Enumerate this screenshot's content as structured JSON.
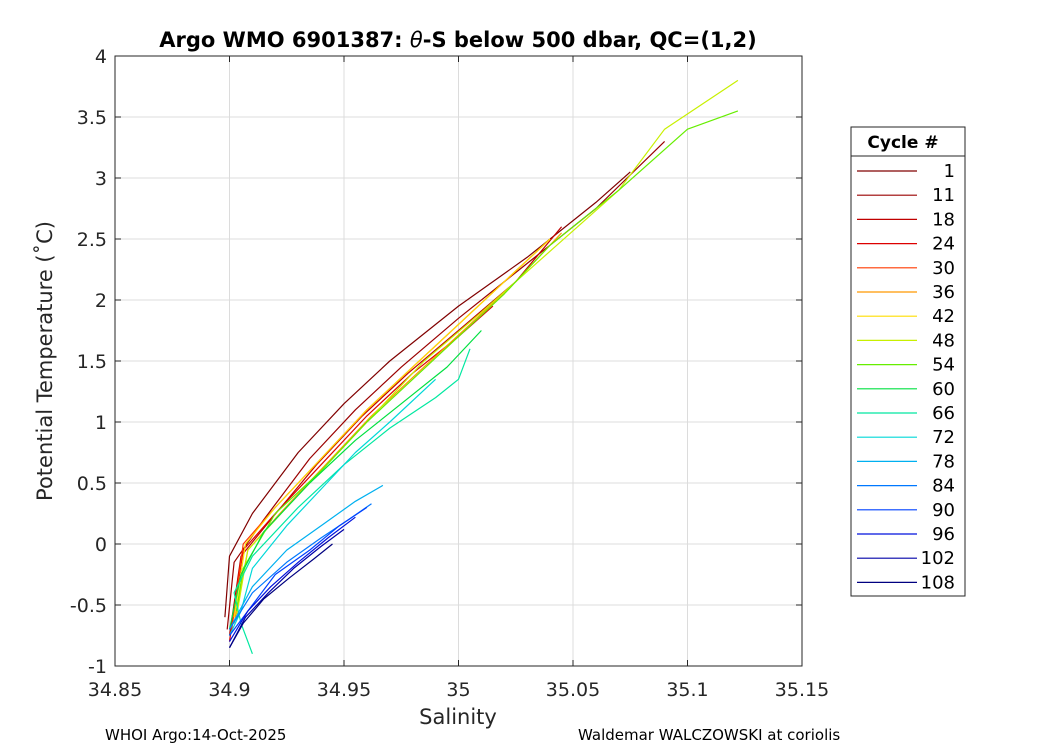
{
  "chart_data": {
    "type": "line",
    "title_prefix": "Argo WMO 6901387: ",
    "title_theta": "θ",
    "title_suffix": "-S below 500 dbar,  QC=(1,2)",
    "xlabel": "Salinity",
    "ylabel": "Potential Temperature (˚C)",
    "xlim": [
      34.85,
      35.15
    ],
    "ylim": [
      -1,
      4
    ],
    "xticks": [
      34.85,
      34.9,
      34.95,
      35,
      35.05,
      35.1,
      35.15
    ],
    "xtick_labels": [
      "34.85",
      "34.9",
      "34.95",
      "35",
      "35.05",
      "35.1",
      "35.15"
    ],
    "yticks": [
      -1,
      -0.5,
      0,
      0.5,
      1,
      1.5,
      2,
      2.5,
      3,
      3.5,
      4
    ],
    "ytick_labels": [
      "-1",
      "-0.5",
      "0",
      "0.5",
      "1",
      "1.5",
      "2",
      "2.5",
      "3",
      "3.5",
      "4"
    ],
    "grid": true,
    "legend_position": "right",
    "legend_title": "Cycle #",
    "series": [
      {
        "name": "1",
        "color": "#800000",
        "x": [
          34.898,
          34.9,
          34.91,
          34.93,
          34.95,
          34.97,
          35.0,
          35.03,
          35.06,
          35.075
        ],
        "y": [
          -0.6,
          -0.1,
          0.25,
          0.75,
          1.15,
          1.5,
          1.95,
          2.35,
          2.8,
          3.05
        ]
      },
      {
        "name": "11",
        "color": "#9a0000",
        "x": [
          34.899,
          34.902,
          34.915,
          34.935,
          34.955,
          34.975,
          35.0,
          35.03,
          35.06,
          35.09
        ],
        "y": [
          -0.7,
          -0.15,
          0.2,
          0.7,
          1.1,
          1.45,
          1.85,
          2.3,
          2.75,
          3.3
        ]
      },
      {
        "name": "18",
        "color": "#c00000",
        "x": [
          34.9,
          34.905,
          34.918,
          34.938,
          34.958,
          34.978,
          35.0,
          35.025,
          35.045
        ],
        "y": [
          -0.75,
          -0.1,
          0.2,
          0.65,
          1.05,
          1.4,
          1.75,
          2.15,
          2.6
        ]
      },
      {
        "name": "24",
        "color": "#dd0000",
        "x": [
          34.9,
          34.906,
          34.92,
          34.94,
          34.96,
          34.98,
          35.0,
          35.015
        ],
        "y": [
          -0.8,
          -0.05,
          0.25,
          0.65,
          1.05,
          1.4,
          1.7,
          1.95
        ]
      },
      {
        "name": "30",
        "color": "#ff3a00",
        "x": [
          34.901,
          34.906,
          34.92,
          34.94,
          34.96,
          34.98,
          35.0,
          35.02,
          35.04
        ],
        "y": [
          -0.7,
          0.0,
          0.3,
          0.7,
          1.1,
          1.45,
          1.8,
          2.15,
          2.5
        ]
      },
      {
        "name": "36",
        "color": "#ff9900",
        "x": [
          34.902,
          34.908,
          34.922,
          34.942,
          34.962,
          34.982,
          35.005,
          35.025,
          35.045
        ],
        "y": [
          -0.65,
          -0.05,
          0.25,
          0.65,
          1.05,
          1.4,
          1.8,
          2.15,
          2.55
        ]
      },
      {
        "name": "42",
        "color": "#ffdd00",
        "x": [
          34.902,
          34.907,
          34.92,
          34.94,
          34.96,
          34.98,
          35.0,
          35.02,
          35.04
        ],
        "y": [
          -0.6,
          0.0,
          0.3,
          0.7,
          1.1,
          1.45,
          1.8,
          2.15,
          2.5
        ]
      },
      {
        "name": "48",
        "color": "#c8f000",
        "x": [
          34.903,
          34.908,
          34.925,
          34.945,
          34.965,
          34.985,
          35.01,
          35.04,
          35.07,
          35.09,
          35.122
        ],
        "y": [
          -0.6,
          -0.05,
          0.3,
          0.7,
          1.1,
          1.5,
          1.9,
          2.4,
          2.9,
          3.4,
          3.8
        ]
      },
      {
        "name": "54",
        "color": "#66ee00",
        "x": [
          34.903,
          34.906,
          34.92,
          34.94,
          34.96,
          34.98,
          35.0,
          35.02,
          35.04,
          35.07,
          35.1,
          35.122
        ],
        "y": [
          -0.55,
          -0.2,
          0.25,
          0.6,
          1.0,
          1.35,
          1.7,
          2.05,
          2.45,
          2.9,
          3.4,
          3.55
        ]
      },
      {
        "name": "60",
        "color": "#00e040",
        "x": [
          34.9,
          34.905,
          34.915,
          34.935,
          34.955,
          34.975,
          34.995,
          35.01
        ],
        "y": [
          -0.7,
          -0.25,
          0.1,
          0.5,
          0.85,
          1.15,
          1.45,
          1.75
        ]
      },
      {
        "name": "66",
        "color": "#00e8a0",
        "x": [
          34.91,
          34.905,
          34.902,
          34.91,
          34.93,
          34.95,
          34.97,
          34.99,
          35.0,
          35.005
        ],
        "y": [
          -0.9,
          -0.65,
          -0.4,
          -0.1,
          0.3,
          0.65,
          0.95,
          1.2,
          1.35,
          1.6
        ]
      },
      {
        "name": "72",
        "color": "#00d8d8",
        "x": [
          34.9,
          34.905,
          34.91,
          34.925,
          34.94,
          34.955,
          34.97,
          34.99
        ],
        "y": [
          -0.75,
          -0.55,
          -0.2,
          0.15,
          0.45,
          0.75,
          1.0,
          1.35
        ]
      },
      {
        "name": "78",
        "color": "#00b0f0",
        "x": [
          34.9,
          34.91,
          34.925,
          34.94,
          34.955,
          34.967
        ],
        "y": [
          -0.7,
          -0.35,
          -0.05,
          0.15,
          0.35,
          0.48
        ]
      },
      {
        "name": "84",
        "color": "#0078ff",
        "x": [
          34.9,
          34.91,
          34.925,
          34.94,
          34.952,
          34.962
        ],
        "y": [
          -0.7,
          -0.4,
          -0.15,
          0.05,
          0.2,
          0.33
        ]
      },
      {
        "name": "90",
        "color": "#0040ff",
        "x": [
          34.9,
          34.91,
          34.92,
          34.935,
          34.948,
          34.96
        ],
        "y": [
          -0.75,
          -0.5,
          -0.25,
          -0.05,
          0.15,
          0.3
        ]
      },
      {
        "name": "96",
        "color": "#0010dd",
        "x": [
          34.9,
          34.908,
          34.918,
          34.93,
          34.943,
          34.955
        ],
        "y": [
          -0.8,
          -0.55,
          -0.35,
          -0.15,
          0.05,
          0.22
        ]
      },
      {
        "name": "102",
        "color": "#0000a8",
        "x": [
          34.9,
          34.907,
          34.917,
          34.928,
          34.94,
          34.95
        ],
        "y": [
          -0.85,
          -0.6,
          -0.4,
          -0.2,
          -0.02,
          0.12
        ]
      },
      {
        "name": "108",
        "color": "#000080",
        "x": [
          34.9,
          34.906,
          34.915,
          34.926,
          34.937,
          34.945
        ],
        "y": [
          -0.85,
          -0.65,
          -0.45,
          -0.28,
          -0.12,
          0.0
        ]
      }
    ]
  },
  "footer": {
    "left": "WHOI Argo:14-Oct-2025",
    "right": "Waldemar WALCZOWSKI at coriolis"
  }
}
